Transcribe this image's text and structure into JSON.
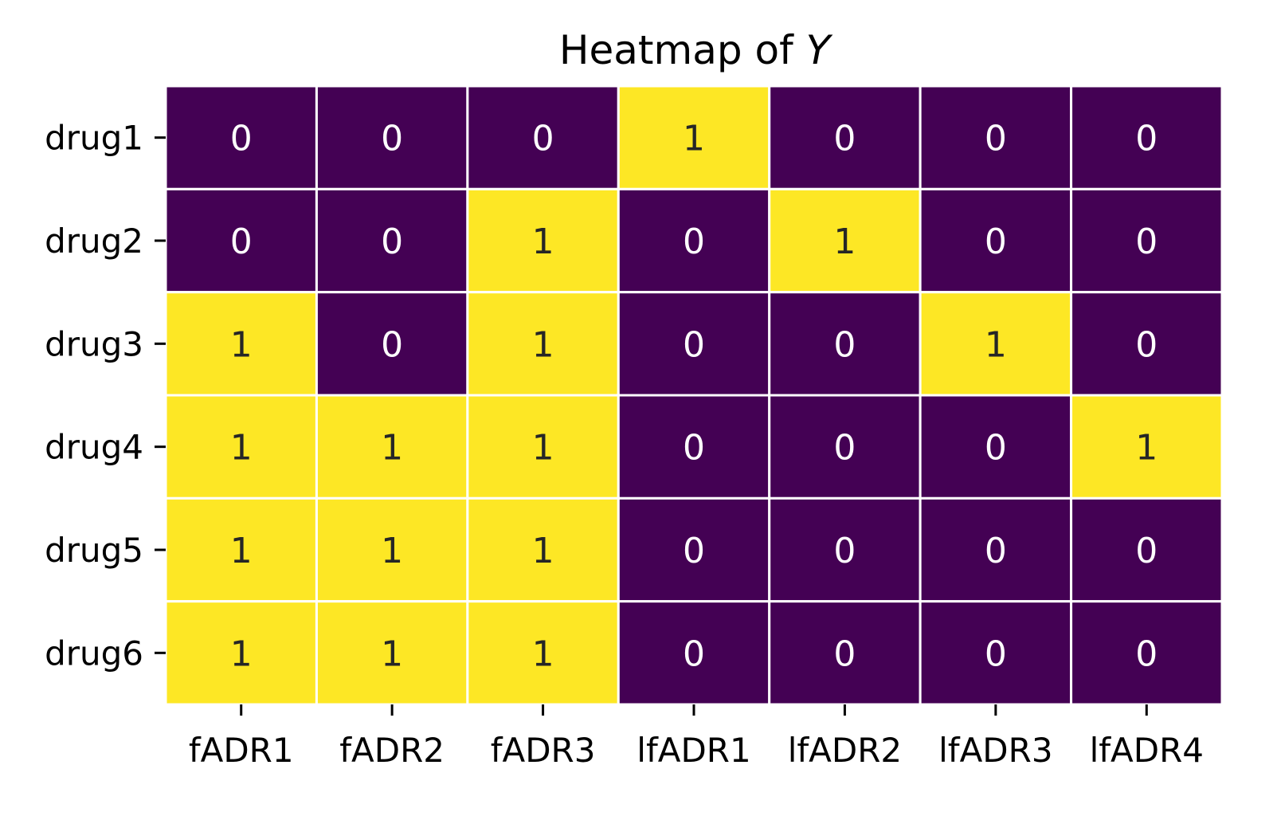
{
  "chart_data": {
    "type": "heatmap",
    "title": "Heatmap of ",
    "title_var": "Y",
    "xlabel": "",
    "ylabel": "",
    "x_categories": [
      "fADR1",
      "fADR2",
      "fADR3",
      "lfADR1",
      "lfADR2",
      "lfADR3",
      "lfADR4"
    ],
    "y_categories": [
      "drug1",
      "drug2",
      "drug3",
      "drug4",
      "drug5",
      "drug6"
    ],
    "values": [
      [
        0,
        0,
        0,
        1,
        0,
        0,
        0
      ],
      [
        0,
        0,
        1,
        0,
        1,
        0,
        0
      ],
      [
        1,
        0,
        1,
        0,
        0,
        1,
        0
      ],
      [
        1,
        1,
        1,
        0,
        0,
        0,
        1
      ],
      [
        1,
        1,
        1,
        0,
        0,
        0,
        0
      ],
      [
        1,
        1,
        1,
        0,
        0,
        0,
        0
      ]
    ],
    "annotated": true,
    "colorbar": false,
    "colors": {
      "low": "#440154",
      "high": "#fde725",
      "text_on_low": "#ffffff",
      "text_on_high": "#262626",
      "cell_border": "#ffffff"
    }
  }
}
